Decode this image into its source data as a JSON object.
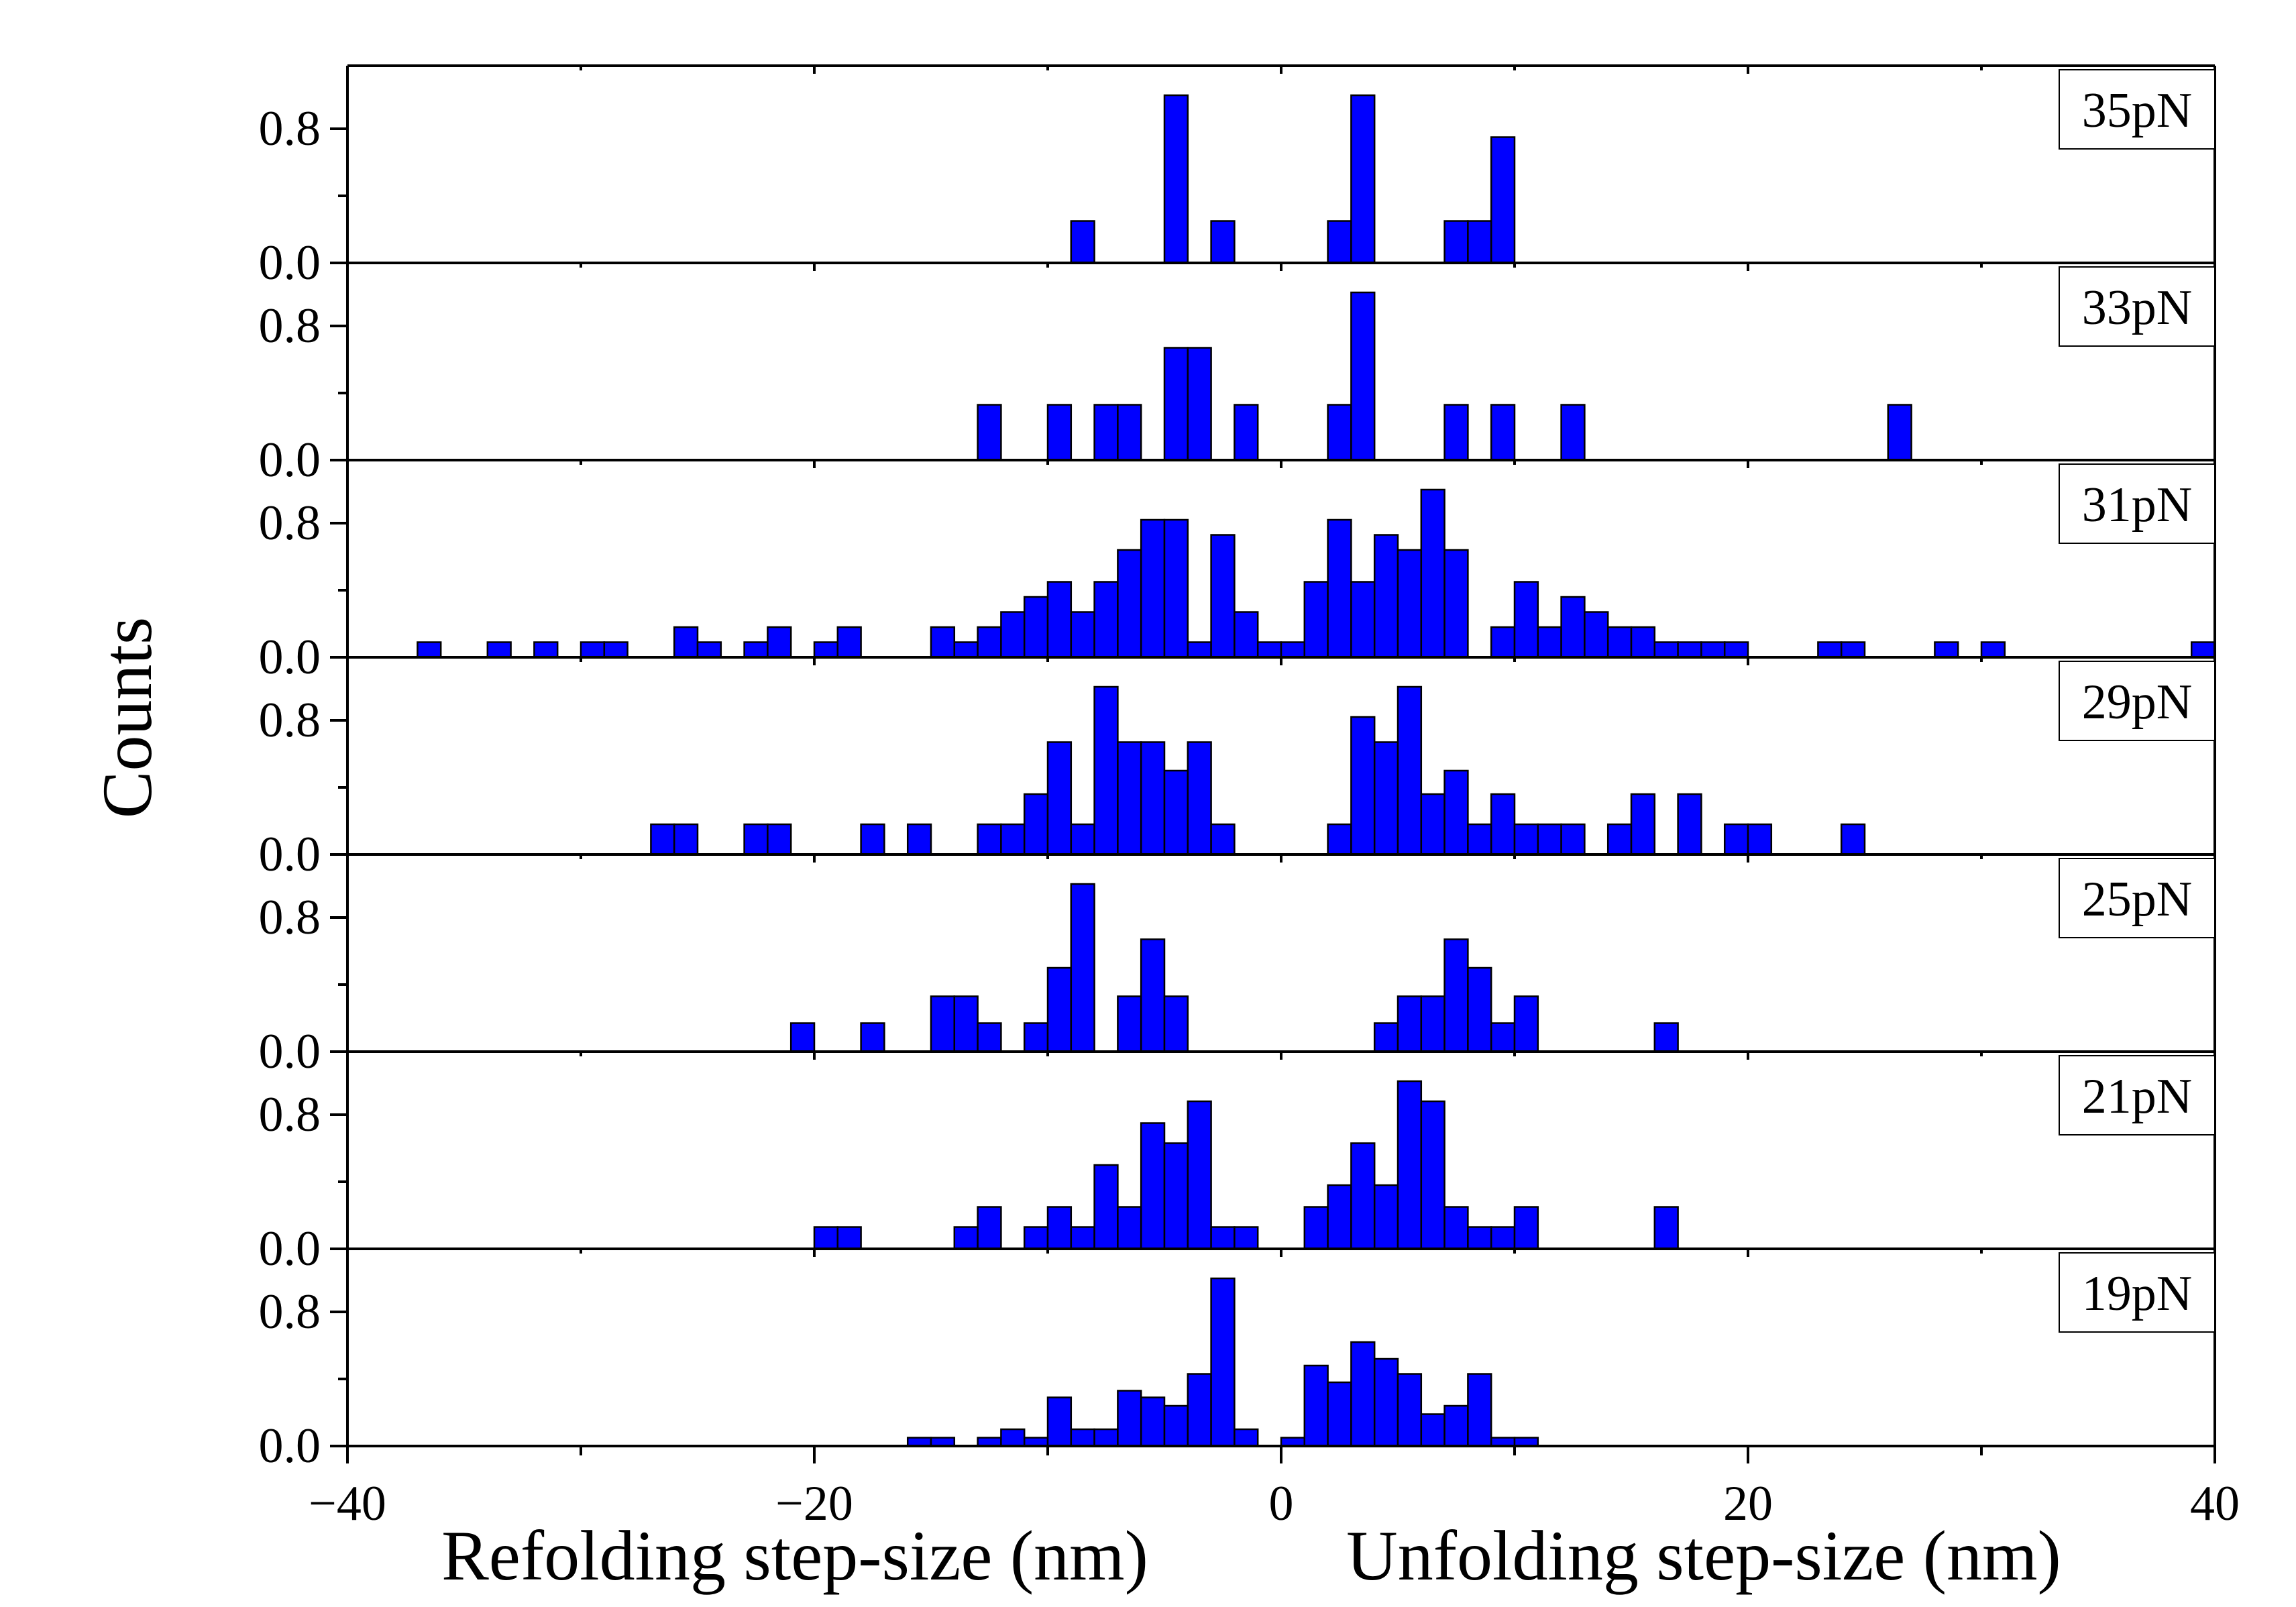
{
  "chart_data": {
    "type": "bar",
    "ylabel": "Counts",
    "xlabel_left": "Refolding step-size (nm)",
    "xlabel_right": "Unfolding step-size (nm)",
    "xlim": [
      -40,
      40
    ],
    "xticks": [
      "−40",
      "−20",
      "0",
      "20",
      "40"
    ],
    "yticks": [
      "0.0",
      "0.8"
    ],
    "ylim": [
      0,
      1.0
    ],
    "bin_width": 1,
    "bar_color": "#0000ff",
    "panels": [
      {
        "label": "35pN",
        "bins": [
          {
            "x": -8.5,
            "y": 0.25
          },
          {
            "x": -4.5,
            "y": 1.0
          },
          {
            "x": -2.5,
            "y": 0.25
          },
          {
            "x": 2.5,
            "y": 0.25
          },
          {
            "x": 3.5,
            "y": 1.0
          },
          {
            "x": 7.5,
            "y": 0.25
          },
          {
            "x": 8.5,
            "y": 0.25
          },
          {
            "x": 9.5,
            "y": 0.75
          }
        ]
      },
      {
        "label": "33pN",
        "bins": [
          {
            "x": -12.5,
            "y": 0.33
          },
          {
            "x": -9.5,
            "y": 0.33
          },
          {
            "x": -7.5,
            "y": 0.33
          },
          {
            "x": -6.5,
            "y": 0.33
          },
          {
            "x": -4.5,
            "y": 0.67
          },
          {
            "x": -3.5,
            "y": 0.67
          },
          {
            "x": -1.5,
            "y": 0.33
          },
          {
            "x": 2.5,
            "y": 0.33
          },
          {
            "x": 3.5,
            "y": 1.0
          },
          {
            "x": 7.5,
            "y": 0.33
          },
          {
            "x": 9.5,
            "y": 0.33
          },
          {
            "x": 12.5,
            "y": 0.33
          },
          {
            "x": 26.5,
            "y": 0.33
          }
        ]
      },
      {
        "label": "31pN",
        "bins": [
          {
            "x": -36.5,
            "y": 0.09
          },
          {
            "x": -33.5,
            "y": 0.09
          },
          {
            "x": -31.5,
            "y": 0.09
          },
          {
            "x": -29.5,
            "y": 0.09
          },
          {
            "x": -28.5,
            "y": 0.09
          },
          {
            "x": -25.5,
            "y": 0.18
          },
          {
            "x": -24.5,
            "y": 0.09
          },
          {
            "x": -22.5,
            "y": 0.09
          },
          {
            "x": -21.5,
            "y": 0.18
          },
          {
            "x": -19.5,
            "y": 0.09
          },
          {
            "x": -18.5,
            "y": 0.18
          },
          {
            "x": -14.5,
            "y": 0.18
          },
          {
            "x": -13.5,
            "y": 0.09
          },
          {
            "x": -12.5,
            "y": 0.18
          },
          {
            "x": -11.5,
            "y": 0.27
          },
          {
            "x": -10.5,
            "y": 0.36
          },
          {
            "x": -9.5,
            "y": 0.45
          },
          {
            "x": -8.5,
            "y": 0.27
          },
          {
            "x": -7.5,
            "y": 0.45
          },
          {
            "x": -6.5,
            "y": 0.64
          },
          {
            "x": -5.5,
            "y": 0.82
          },
          {
            "x": -4.5,
            "y": 0.82
          },
          {
            "x": -3.5,
            "y": 0.09
          },
          {
            "x": -2.5,
            "y": 0.73
          },
          {
            "x": -1.5,
            "y": 0.27
          },
          {
            "x": -0.5,
            "y": 0.09
          },
          {
            "x": 0.5,
            "y": 0.09
          },
          {
            "x": 1.5,
            "y": 0.45
          },
          {
            "x": 2.5,
            "y": 0.82
          },
          {
            "x": 3.5,
            "y": 0.45
          },
          {
            "x": 4.5,
            "y": 0.73
          },
          {
            "x": 5.5,
            "y": 0.64
          },
          {
            "x": 6.5,
            "y": 1.0
          },
          {
            "x": 7.5,
            "y": 0.64
          },
          {
            "x": 9.5,
            "y": 0.18
          },
          {
            "x": 10.5,
            "y": 0.45
          },
          {
            "x": 11.5,
            "y": 0.18
          },
          {
            "x": 12.5,
            "y": 0.36
          },
          {
            "x": 13.5,
            "y": 0.27
          },
          {
            "x": 14.5,
            "y": 0.18
          },
          {
            "x": 15.5,
            "y": 0.18
          },
          {
            "x": 16.5,
            "y": 0.09
          },
          {
            "x": 17.5,
            "y": 0.09
          },
          {
            "x": 18.5,
            "y": 0.09
          },
          {
            "x": 19.5,
            "y": 0.09
          },
          {
            "x": 23.5,
            "y": 0.09
          },
          {
            "x": 24.5,
            "y": 0.09
          },
          {
            "x": 28.5,
            "y": 0.09
          },
          {
            "x": 30.5,
            "y": 0.09
          },
          {
            "x": 39.5,
            "y": 0.09
          }
        ]
      },
      {
        "label": "29pN",
        "bins": [
          {
            "x": -26.5,
            "y": 0.18
          },
          {
            "x": -25.5,
            "y": 0.18
          },
          {
            "x": -22.5,
            "y": 0.18
          },
          {
            "x": -21.5,
            "y": 0.18
          },
          {
            "x": -17.5,
            "y": 0.18
          },
          {
            "x": -15.5,
            "y": 0.18
          },
          {
            "x": -12.5,
            "y": 0.18
          },
          {
            "x": -11.5,
            "y": 0.18
          },
          {
            "x": -10.5,
            "y": 0.36
          },
          {
            "x": -9.5,
            "y": 0.67
          },
          {
            "x": -8.5,
            "y": 0.18
          },
          {
            "x": -7.5,
            "y": 1.0
          },
          {
            "x": -6.5,
            "y": 0.67
          },
          {
            "x": -5.5,
            "y": 0.67
          },
          {
            "x": -4.5,
            "y": 0.5
          },
          {
            "x": -3.5,
            "y": 0.67
          },
          {
            "x": -2.5,
            "y": 0.18
          },
          {
            "x": 2.5,
            "y": 0.18
          },
          {
            "x": 3.5,
            "y": 0.82
          },
          {
            "x": 4.5,
            "y": 0.67
          },
          {
            "x": 5.5,
            "y": 1.0
          },
          {
            "x": 6.5,
            "y": 0.36
          },
          {
            "x": 7.5,
            "y": 0.5
          },
          {
            "x": 8.5,
            "y": 0.18
          },
          {
            "x": 9.5,
            "y": 0.36
          },
          {
            "x": 10.5,
            "y": 0.18
          },
          {
            "x": 11.5,
            "y": 0.18
          },
          {
            "x": 12.5,
            "y": 0.18
          },
          {
            "x": 14.5,
            "y": 0.18
          },
          {
            "x": 15.5,
            "y": 0.36
          },
          {
            "x": 17.5,
            "y": 0.36
          },
          {
            "x": 19.5,
            "y": 0.18
          },
          {
            "x": 20.5,
            "y": 0.18
          },
          {
            "x": 24.5,
            "y": 0.18
          }
        ]
      },
      {
        "label": "25pN",
        "bins": [
          {
            "x": -20.5,
            "y": 0.17
          },
          {
            "x": -17.5,
            "y": 0.17
          },
          {
            "x": -14.5,
            "y": 0.33
          },
          {
            "x": -13.5,
            "y": 0.33
          },
          {
            "x": -12.5,
            "y": 0.17
          },
          {
            "x": -10.5,
            "y": 0.17
          },
          {
            "x": -9.5,
            "y": 0.5
          },
          {
            "x": -8.5,
            "y": 1.0
          },
          {
            "x": -6.5,
            "y": 0.33
          },
          {
            "x": -5.5,
            "y": 0.67
          },
          {
            "x": -4.5,
            "y": 0.33
          },
          {
            "x": 4.5,
            "y": 0.17
          },
          {
            "x": 5.5,
            "y": 0.33
          },
          {
            "x": 6.5,
            "y": 0.33
          },
          {
            "x": 7.5,
            "y": 0.67
          },
          {
            "x": 8.5,
            "y": 0.5
          },
          {
            "x": 9.5,
            "y": 0.17
          },
          {
            "x": 10.5,
            "y": 0.33
          },
          {
            "x": 16.5,
            "y": 0.17
          }
        ]
      },
      {
        "label": "21pN",
        "bins": [
          {
            "x": -19.5,
            "y": 0.13
          },
          {
            "x": -18.5,
            "y": 0.13
          },
          {
            "x": -13.5,
            "y": 0.13
          },
          {
            "x": -12.5,
            "y": 0.25
          },
          {
            "x": -10.5,
            "y": 0.13
          },
          {
            "x": -9.5,
            "y": 0.25
          },
          {
            "x": -8.5,
            "y": 0.13
          },
          {
            "x": -7.5,
            "y": 0.5
          },
          {
            "x": -6.5,
            "y": 0.25
          },
          {
            "x": -5.5,
            "y": 0.75
          },
          {
            "x": -4.5,
            "y": 0.63
          },
          {
            "x": -3.5,
            "y": 0.88
          },
          {
            "x": -2.5,
            "y": 0.13
          },
          {
            "x": -1.5,
            "y": 0.13
          },
          {
            "x": 1.5,
            "y": 0.25
          },
          {
            "x": 2.5,
            "y": 0.38
          },
          {
            "x": 3.5,
            "y": 0.63
          },
          {
            "x": 4.5,
            "y": 0.38
          },
          {
            "x": 5.5,
            "y": 1.0
          },
          {
            "x": 6.5,
            "y": 0.88
          },
          {
            "x": 7.5,
            "y": 0.25
          },
          {
            "x": 8.5,
            "y": 0.13
          },
          {
            "x": 9.5,
            "y": 0.13
          },
          {
            "x": 10.5,
            "y": 0.25
          },
          {
            "x": 16.5,
            "y": 0.25
          }
        ]
      },
      {
        "label": "19pN",
        "bins": [
          {
            "x": -15.5,
            "y": 0.05
          },
          {
            "x": -14.5,
            "y": 0.05
          },
          {
            "x": -12.5,
            "y": 0.05
          },
          {
            "x": -11.5,
            "y": 0.1
          },
          {
            "x": -10.5,
            "y": 0.05
          },
          {
            "x": -9.5,
            "y": 0.29
          },
          {
            "x": -8.5,
            "y": 0.1
          },
          {
            "x": -7.5,
            "y": 0.1
          },
          {
            "x": -6.5,
            "y": 0.33
          },
          {
            "x": -5.5,
            "y": 0.29
          },
          {
            "x": -4.5,
            "y": 0.24
          },
          {
            "x": -3.5,
            "y": 0.43
          },
          {
            "x": -2.5,
            "y": 1.0
          },
          {
            "x": -1.5,
            "y": 0.1
          },
          {
            "x": 0.5,
            "y": 0.05
          },
          {
            "x": 1.5,
            "y": 0.48
          },
          {
            "x": 2.5,
            "y": 0.38
          },
          {
            "x": 3.5,
            "y": 0.62
          },
          {
            "x": 4.5,
            "y": 0.52
          },
          {
            "x": 5.5,
            "y": 0.43
          },
          {
            "x": 6.5,
            "y": 0.19
          },
          {
            "x": 7.5,
            "y": 0.24
          },
          {
            "x": 8.5,
            "y": 0.43
          },
          {
            "x": 9.5,
            "y": 0.05
          },
          {
            "x": 10.5,
            "y": 0.05
          }
        ]
      }
    ]
  }
}
